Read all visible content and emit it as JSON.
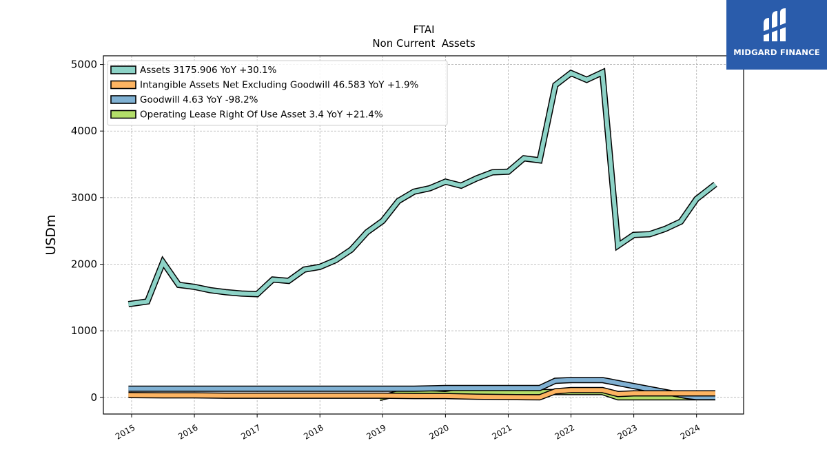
{
  "chart_data": {
    "type": "line",
    "title": "FTAI",
    "subtitle": "Non Current  Assets",
    "ylabel": "USDm",
    "xlabel": "",
    "xlim": [
      2014.55,
      2024.75
    ],
    "ylim": [
      -250,
      5130
    ],
    "yticks": [
      0,
      1000,
      2000,
      3000,
      4000,
      5000
    ],
    "xticks": [
      "2015",
      "2016",
      "2017",
      "2018",
      "2019",
      "2020",
      "2021",
      "2022",
      "2023",
      "2024"
    ],
    "grid": true,
    "legend_position": "upper-left",
    "series": [
      {
        "name": "Assets  3175.906 YoY +30.1%",
        "color": "#8dd3c7",
        "x": [
          2014.95,
          2015.25,
          2015.5,
          2015.75,
          2016.0,
          2016.25,
          2016.5,
          2016.75,
          2017.0,
          2017.25,
          2017.5,
          2017.75,
          2018.0,
          2018.25,
          2018.5,
          2018.75,
          2019.0,
          2019.25,
          2019.5,
          2019.75,
          2020.0,
          2020.25,
          2020.5,
          2020.75,
          2021.0,
          2021.25,
          2021.5,
          2021.75,
          2022.0,
          2022.25,
          2022.5,
          2022.75,
          2023.0,
          2023.25,
          2023.5,
          2023.75,
          2024.0,
          2024.3
        ],
        "values": [
          1400,
          1440,
          2030,
          1690,
          1660,
          1610,
          1580,
          1560,
          1550,
          1770,
          1750,
          1920,
          1960,
          2060,
          2220,
          2480,
          2650,
          2950,
          3090,
          3140,
          3240,
          3180,
          3290,
          3380,
          3390,
          3590,
          3560,
          4690,
          4870,
          4770,
          4880,
          2280,
          2440,
          2450,
          2530,
          2640,
          2980,
          3200
        ]
      },
      {
        "name": "Intangible Assets Net Excluding Goodwill  46.583 YoY +1.9%",
        "color": "#fdb462",
        "x": [
          2014.95,
          2015.5,
          2016.0,
          2016.5,
          2017.0,
          2017.5,
          2018.0,
          2018.5,
          2019.0,
          2019.5,
          2020.0,
          2020.5,
          2021.0,
          2021.5,
          2021.75,
          2022.0,
          2022.25,
          2022.5,
          2022.75,
          2023.0,
          2023.5,
          2024.0,
          2024.3
        ],
        "values": [
          35,
          30,
          30,
          25,
          25,
          25,
          25,
          25,
          25,
          20,
          20,
          10,
          5,
          0,
          90,
          110,
          110,
          110,
          50,
          60,
          60,
          60,
          60
        ]
      },
      {
        "name": "Goodwill  4.63 YoY -98.2%",
        "color": "#80b1d3",
        "x": [
          2014.95,
          2015.5,
          2016.0,
          2016.5,
          2017.0,
          2017.5,
          2018.0,
          2018.5,
          2019.0,
          2019.5,
          2020.0,
          2020.5,
          2021.0,
          2021.5,
          2021.75,
          2022.0,
          2022.25,
          2022.5,
          2023.0,
          2023.5,
          2023.85,
          2024.0,
          2024.3
        ],
        "values": [
          130,
          130,
          130,
          130,
          130,
          130,
          130,
          130,
          130,
          130,
          140,
          140,
          140,
          140,
          250,
          260,
          260,
          260,
          170,
          80,
          20,
          5,
          5
        ]
      },
      {
        "name": "Operating Lease Right Of Use Asset  3.4 YoY +21.4%",
        "color": "#b3de69",
        "x": [
          2018.95,
          2019.25,
          2019.5,
          2019.75,
          2020.0,
          2020.25,
          2020.5,
          2020.75,
          2021.0,
          2021.25,
          2021.5,
          2021.75,
          2022.0,
          2022.25,
          2022.5,
          2022.75,
          2023.0,
          2023.5,
          2024.0,
          2024.3
        ],
        "values": [
          -10,
          60,
          60,
          60,
          50,
          80,
          80,
          80,
          80,
          80,
          80,
          80,
          80,
          80,
          80,
          0,
          0,
          0,
          0,
          0
        ]
      }
    ]
  },
  "logo": {
    "text": "MIDGARD FINANCE"
  }
}
